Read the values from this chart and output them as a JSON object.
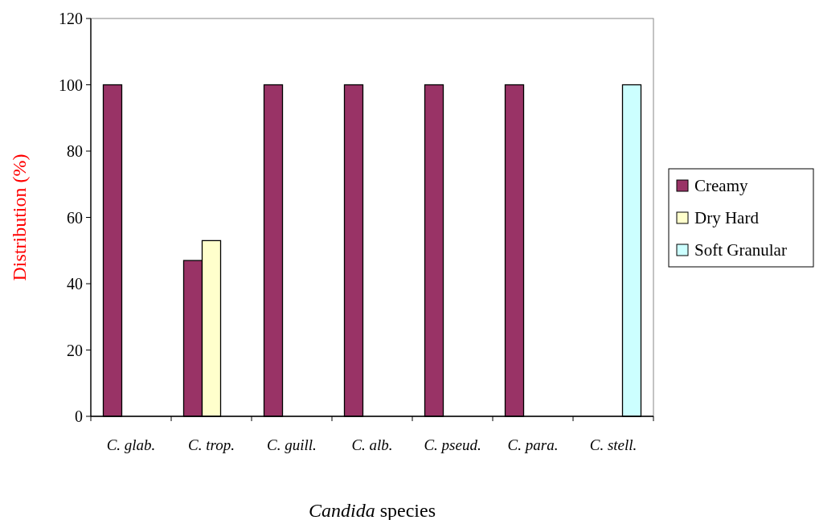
{
  "chart_data": {
    "type": "bar",
    "xlabel": "Candida species",
    "ylabel": "Distribution (%)",
    "categories": [
      "C. glab.",
      "C. trop.",
      "C. guill.",
      "C. alb.",
      "C. pseud.",
      "C. para.",
      "C. stell."
    ],
    "series": [
      {
        "name": "Creamy",
        "color": "#993366",
        "values": [
          100,
          47,
          100,
          100,
          100,
          100,
          null
        ]
      },
      {
        "name": "Dry Hard",
        "color": "#ffffcc",
        "values": [
          null,
          53,
          null,
          null,
          null,
          null,
          null
        ]
      },
      {
        "name": "Soft Granular",
        "color": "#ccffff",
        "values": [
          null,
          null,
          null,
          null,
          null,
          null,
          100
        ]
      }
    ],
    "ylim": [
      0,
      120
    ],
    "yticks": [
      0,
      20,
      40,
      60,
      80,
      100,
      120
    ],
    "grid": false,
    "legend": "right"
  }
}
